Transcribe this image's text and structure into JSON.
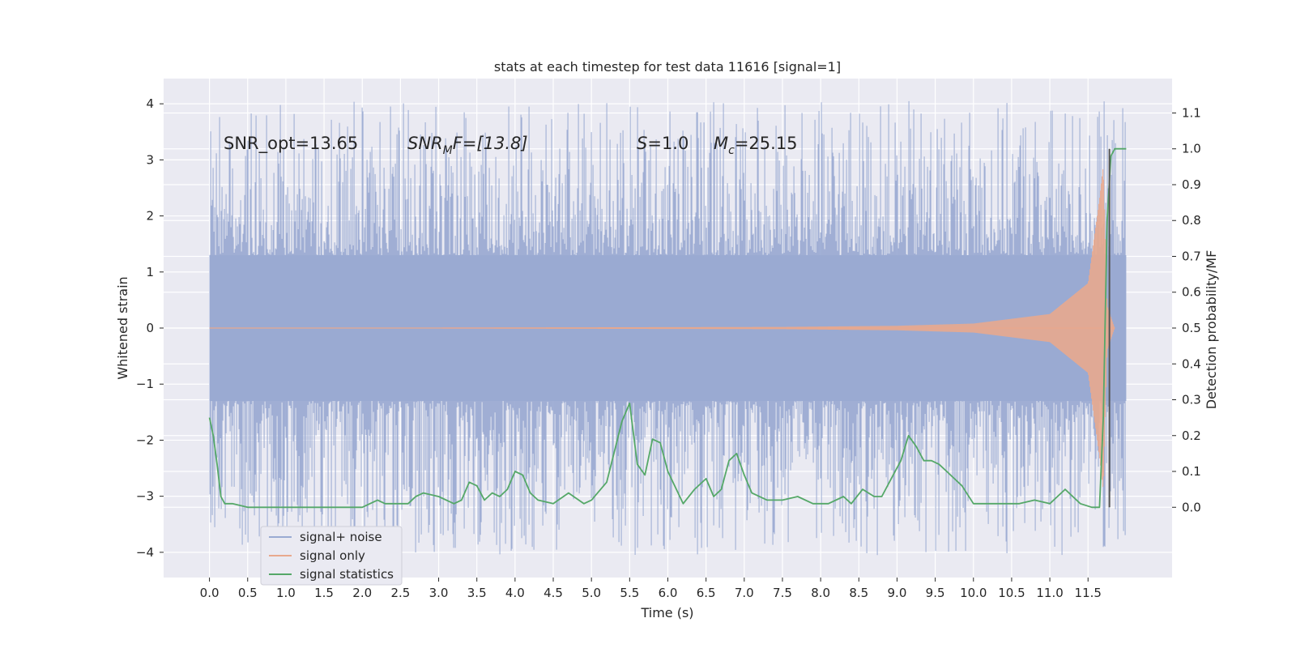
{
  "chart_data": {
    "type": "line",
    "title": "stats at each timestep for test data 11616 [signal=1]",
    "xlabel": "Time (s)",
    "ylabel": "Whitened strain",
    "ylabel_right": "Detection probability/MF",
    "xlim": [
      -0.6,
      12.6
    ],
    "ylim": [
      -4.45,
      4.45
    ],
    "ylim_right": [
      -0.196,
      1.196
    ],
    "x_ticks": [
      0,
      0.5,
      1,
      1.5,
      2,
      2.5,
      3,
      3.5,
      4,
      4.5,
      5,
      5.5,
      6,
      6.5,
      7,
      7.5,
      8,
      8.5,
      9,
      9.5,
      10,
      10.5,
      11,
      11.5
    ],
    "x_tick_labels": [
      "0.0",
      "0.5",
      "1.0",
      "1.5",
      "2.0",
      "2.5",
      "3.0",
      "3.5",
      "4.0",
      "4.5",
      "5.0",
      "5.5",
      "6.0",
      "6.5",
      "7.0",
      "7.5",
      "8.0",
      "8.5",
      "9.0",
      "9.5",
      "10.0",
      "10.5",
      "11.0",
      "11.5"
    ],
    "y_ticks": [
      4,
      3,
      2,
      1,
      0,
      -1,
      -2,
      -3,
      -4
    ],
    "y_tick_labels": [
      "4",
      "3",
      "2",
      "1",
      "0",
      "−1",
      "−2",
      "−3",
      "−4"
    ],
    "y2_ticks": [
      1.1,
      1.0,
      0.9,
      0.8,
      0.7,
      0.6,
      0.5,
      0.4,
      0.3,
      0.2,
      0.1,
      0.0
    ],
    "y2_tick_labels": [
      "1.1",
      "1.0",
      "0.9",
      "0.8",
      "0.7",
      "0.6",
      "0.5",
      "0.4",
      "0.3",
      "0.2",
      "0.1",
      "0.0"
    ],
    "grid": true,
    "legend_position": "lower-left",
    "colors": {
      "background": "#eaeaf2",
      "noise": "#9aaad2",
      "signal": "#e8a98e",
      "stats": "#55a868",
      "marker": "#555555"
    },
    "annotations": {
      "snr_opt": "SNR_opt=13.65",
      "snr_mf_main": "SNR",
      "snr_mf_sub": "M",
      "snr_mf_rest": "F=[13.8]",
      "s_main": "S",
      "s_rest": "=1.0",
      "mc_main": "M",
      "mc_sub": "c",
      "mc_rest": "=25.15"
    },
    "series": [
      {
        "name": "signal+ noise",
        "kind": "noise band",
        "x_range": [
          0.0,
          12.0
        ],
        "typical_envelope": [
          -1.3,
          1.3
        ],
        "peak_max": 4.05,
        "peak_min": -4.05
      },
      {
        "name": "signal only",
        "kind": "chirp",
        "x_range": [
          0.0,
          11.85
        ],
        "amplitude_points": [
          [
            0.0,
            0.0
          ],
          [
            7.5,
            0.02
          ],
          [
            9.0,
            0.04
          ],
          [
            10.0,
            0.08
          ],
          [
            11.0,
            0.25
          ],
          [
            11.5,
            0.8
          ],
          [
            11.65,
            2.3
          ],
          [
            11.7,
            2.9
          ],
          [
            11.75,
            0.4
          ],
          [
            11.85,
            0.0
          ]
        ]
      },
      {
        "name": "signal statistics",
        "kind": "line (right axis)",
        "x": [
          0.0,
          0.05,
          0.1,
          0.15,
          0.2,
          0.3,
          0.5,
          0.7,
          1.0,
          1.2,
          1.5,
          1.8,
          2.0,
          2.1,
          2.2,
          2.3,
          2.4,
          2.6,
          2.7,
          2.8,
          3.0,
          3.2,
          3.3,
          3.4,
          3.5,
          3.6,
          3.7,
          3.8,
          3.9,
          4.0,
          4.1,
          4.2,
          4.3,
          4.5,
          4.7,
          4.9,
          5.0,
          5.2,
          5.4,
          5.5,
          5.6,
          5.7,
          5.8,
          5.9,
          6.0,
          6.2,
          6.35,
          6.5,
          6.6,
          6.7,
          6.8,
          6.9,
          7.0,
          7.1,
          7.3,
          7.5,
          7.7,
          7.9,
          8.1,
          8.3,
          8.4,
          8.55,
          8.7,
          8.8,
          8.95,
          9.05,
          9.15,
          9.25,
          9.35,
          9.45,
          9.55,
          9.65,
          9.75,
          9.85,
          10.0,
          10.2,
          10.4,
          10.6,
          10.8,
          11.0,
          11.2,
          11.4,
          11.55,
          11.65,
          11.7,
          11.75,
          11.8,
          11.85,
          11.9,
          12.0
        ],
        "y": [
          0.25,
          0.2,
          0.12,
          0.03,
          0.01,
          0.01,
          0.0,
          0.0,
          0.0,
          0.0,
          0.0,
          0.0,
          0.0,
          0.01,
          0.02,
          0.01,
          0.01,
          0.01,
          0.03,
          0.04,
          0.03,
          0.01,
          0.02,
          0.07,
          0.06,
          0.02,
          0.04,
          0.03,
          0.05,
          0.1,
          0.09,
          0.04,
          0.02,
          0.01,
          0.04,
          0.01,
          0.02,
          0.07,
          0.24,
          0.29,
          0.12,
          0.09,
          0.19,
          0.18,
          0.1,
          0.01,
          0.05,
          0.08,
          0.03,
          0.05,
          0.13,
          0.15,
          0.09,
          0.04,
          0.02,
          0.02,
          0.03,
          0.01,
          0.01,
          0.03,
          0.01,
          0.05,
          0.03,
          0.03,
          0.09,
          0.13,
          0.2,
          0.17,
          0.13,
          0.13,
          0.12,
          0.1,
          0.08,
          0.06,
          0.01,
          0.01,
          0.01,
          0.01,
          0.02,
          0.01,
          0.05,
          0.01,
          0.0,
          0.0,
          0.25,
          0.8,
          0.98,
          1.0,
          1.0,
          1.0
        ]
      }
    ],
    "detection_marker_x": 11.78,
    "detection_marker_range": [
      0.0,
      1.0
    ]
  }
}
